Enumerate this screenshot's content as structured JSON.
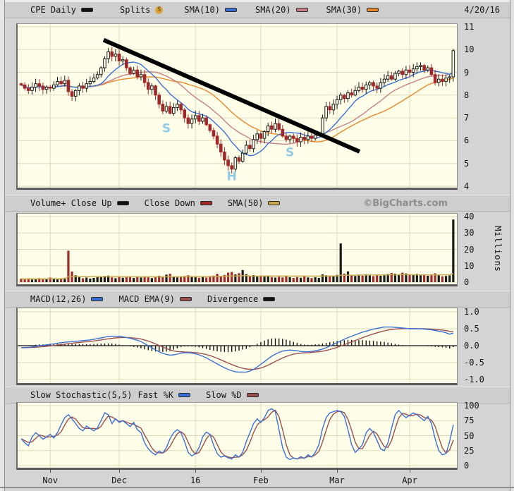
{
  "legend_price": {
    "symbol": "CPE Daily",
    "splits": "Splits",
    "splits_badge": "S",
    "sma10": "SMA(10)",
    "sma20": "SMA(20)",
    "sma30": "SMA(30)",
    "date": "4/20/16"
  },
  "legend_volume": {
    "volume": "Volume+ Close Up",
    "close_down": "Close Down",
    "sma50": "SMA(50)",
    "watermark": "©BigCharts.com"
  },
  "legend_macd": {
    "macd": "MACD(12,26)",
    "ema": "MACD EMA(9)",
    "divergence": "Divergence"
  },
  "legend_stoch": {
    "name": "Slow Stochastic(5,5)",
    "fast_k": "Fast %K",
    "slow_d": "Slow %D"
  },
  "colors": {
    "plot_bg": "#ffffe9",
    "grid": "#ddd9bd",
    "candle_up": "#1a1a1a",
    "candle_down": "#a02828",
    "sma10": "#3b6fd4",
    "sma20": "#c58088",
    "sma30": "#e8882a",
    "vol_sma50": "#c9a94f",
    "macd_line": "#3b6fd4",
    "macd_signal": "#9c4f4f",
    "stoch_k": "#3b6fd4",
    "stoch_d": "#9c4f4f",
    "histogram": "#111111",
    "trendline": "#000000",
    "annotation": "#8fcbe9"
  },
  "chart_data": {
    "symbol": "CPE",
    "period": "Daily",
    "as_of_date": "4/20/16",
    "x_axis": {
      "tick_labels": [
        "Nov",
        "Dec",
        "16",
        "Feb",
        "Mar",
        "Apr"
      ],
      "tick_day_index": [
        8,
        27,
        48,
        66,
        87,
        107
      ],
      "total_days": 120
    },
    "price_panel": {
      "type": "candlestick",
      "ylim": [
        4,
        11
      ],
      "yticks": [
        11,
        10,
        9,
        8,
        7,
        6,
        5,
        4
      ],
      "overlays": [
        "SMA(10)",
        "SMA(20)",
        "SMA(30)"
      ],
      "closes": [
        8.45,
        8.3,
        8.2,
        8.35,
        8.5,
        8.4,
        8.25,
        8.35,
        8.3,
        8.45,
        8.6,
        8.5,
        8.65,
        8.15,
        7.95,
        8.2,
        8.4,
        8.3,
        8.5,
        8.6,
        8.75,
        8.9,
        9.2,
        9.6,
        9.9,
        9.7,
        9.8,
        9.5,
        9.55,
        9.2,
        8.95,
        9.1,
        8.8,
        8.9,
        8.55,
        8.25,
        8.4,
        8.0,
        7.6,
        7.3,
        7.5,
        7.2,
        7.45,
        7.6,
        7.35,
        7.0,
        6.75,
        6.95,
        7.1,
        6.85,
        7.0,
        6.7,
        6.45,
        6.2,
        5.85,
        5.5,
        5.15,
        4.9,
        4.75,
        5.25,
        5.1,
        5.45,
        5.8,
        5.65,
        6.05,
        6.3,
        6.1,
        6.4,
        6.65,
        6.5,
        6.75,
        6.5,
        6.2,
        6.05,
        6.2,
        6.1,
        5.95,
        6.15,
        6.05,
        6.2,
        6.1,
        6.25,
        6.3,
        7.0,
        7.5,
        7.35,
        7.6,
        7.8,
        8.0,
        7.85,
        8.1,
        8.0,
        8.2,
        8.35,
        8.25,
        8.45,
        8.55,
        8.4,
        8.3,
        8.55,
        8.7,
        8.85,
        8.7,
        8.95,
        9.05,
        8.9,
        9.1,
        9.0,
        9.15,
        9.25,
        9.3,
        9.1,
        9.2,
        8.9,
        8.55,
        8.7,
        8.6,
        8.75,
        8.8,
        9.95
      ],
      "annotations": [
        {
          "label": "S",
          "day": 40,
          "price": 6.55
        },
        {
          "label": "H",
          "day": 58,
          "price": 4.45
        },
        {
          "label": "S",
          "day": 74,
          "price": 5.5
        }
      ],
      "trendline": {
        "from_day": 22.7,
        "from_price": 10.42,
        "to_day": 93.2,
        "to_price": 5.52
      }
    },
    "volume_panel": {
      "type": "bar",
      "unit": "Millions",
      "ylim": [
        0,
        40
      ],
      "yticks": [
        40,
        30,
        20,
        10,
        0
      ],
      "overlay": "SMA(50)",
      "values": [
        2.1,
        1.8,
        2.4,
        1.6,
        2.0,
        2.5,
        1.9,
        2.2,
        2.8,
        2.3,
        1.7,
        2.0,
        2.6,
        19.2,
        6.5,
        4.2,
        3.0,
        2.4,
        2.8,
        2.2,
        2.6,
        3.1,
        3.5,
        3.8,
        4.0,
        2.9,
        2.4,
        3.2,
        2.7,
        3.5,
        3.0,
        2.6,
        3.3,
        2.8,
        3.6,
        3.1,
        2.5,
        3.4,
        3.9,
        3.2,
        4.6,
        5.1,
        3.5,
        2.9,
        3.3,
        3.8,
        4.2,
        3.6,
        3.0,
        2.7,
        3.2,
        2.8,
        3.5,
        4.0,
        5.2,
        3.7,
        4.4,
        5.8,
        6.2,
        4.8,
        5.5,
        7.4,
        4.9,
        3.8,
        4.3,
        3.6,
        4.1,
        3.4,
        3.9,
        3.1,
        2.8,
        3.3,
        2.9,
        3.5,
        3.0,
        2.6,
        3.1,
        2.7,
        3.4,
        2.9,
        2.5,
        3.0,
        2.6,
        4.8,
        4.2,
        3.6,
        4.0,
        4.4,
        23.6,
        5.2,
        6.6,
        4.4,
        3.8,
        4.6,
        4.0,
        4.8,
        4.2,
        3.7,
        4.3,
        3.9,
        4.5,
        5.0,
        5.6,
        5.2,
        4.6,
        5.8,
        5.3,
        4.8,
        4.4,
        5.0,
        4.2,
        4.7,
        3.9,
        4.8,
        5.4,
        4.3,
        3.6,
        3.8,
        4.1,
        38.2
      ]
    },
    "macd_panel": {
      "type": "line+histogram",
      "ylim": [
        -1,
        1
      ],
      "ytick_values": [
        1,
        0.5,
        0,
        -0.5,
        -1
      ],
      "ytick_labels": [
        "1.0",
        "0.5",
        "0.0",
        "-0.5",
        "-1.0"
      ],
      "signal_rule": "EMA(9) of MACD",
      "histogram_rule": "MACD minus signal",
      "macd": [
        -0.06,
        -0.05,
        -0.05,
        -0.04,
        -0.02,
        0.0,
        0.01,
        0.02,
        0.04,
        0.05,
        0.07,
        0.09,
        0.1,
        0.11,
        0.12,
        0.13,
        0.14,
        0.15,
        0.16,
        0.17,
        0.19,
        0.21,
        0.23,
        0.25,
        0.27,
        0.28,
        0.28,
        0.27,
        0.26,
        0.24,
        0.22,
        0.19,
        0.16,
        0.12,
        0.06,
        0.0,
        -0.06,
        -0.12,
        -0.18,
        -0.23,
        -0.26,
        -0.28,
        -0.27,
        -0.25,
        -0.22,
        -0.21,
        -0.21,
        -0.22,
        -0.24,
        -0.27,
        -0.31,
        -0.36,
        -0.42,
        -0.48,
        -0.54,
        -0.6,
        -0.65,
        -0.7,
        -0.74,
        -0.77,
        -0.78,
        -0.78,
        -0.78,
        -0.75,
        -0.7,
        -0.63,
        -0.55,
        -0.47,
        -0.39,
        -0.31,
        -0.25,
        -0.2,
        -0.16,
        -0.14,
        -0.13,
        -0.14,
        -0.15,
        -0.17,
        -0.18,
        -0.18,
        -0.17,
        -0.15,
        -0.13,
        -0.1,
        -0.06,
        -0.01,
        0.04,
        0.09,
        0.14,
        0.19,
        0.24,
        0.28,
        0.32,
        0.36,
        0.4,
        0.43,
        0.46,
        0.49,
        0.51,
        0.53,
        0.55,
        0.55,
        0.55,
        0.54,
        0.53,
        0.52,
        0.51,
        0.5,
        0.5,
        0.5,
        0.5,
        0.49,
        0.48,
        0.47,
        0.45,
        0.43,
        0.41,
        0.38,
        0.34,
        0.37
      ]
    },
    "stochastic_panel": {
      "type": "line",
      "ylim": [
        0,
        100
      ],
      "yticks": [
        100,
        75,
        50,
        25,
        0
      ],
      "slow_d_rule": "SMA(3) of %K",
      "fast_k": [
        45,
        38,
        33,
        48,
        55,
        50,
        44,
        48,
        52,
        46,
        55,
        68,
        80,
        85,
        78,
        70,
        62,
        58,
        66,
        62,
        58,
        63,
        75,
        88,
        85,
        70,
        78,
        72,
        75,
        70,
        65,
        72,
        60,
        55,
        38,
        28,
        22,
        18,
        24,
        21,
        30,
        45,
        55,
        60,
        55,
        40,
        22,
        16,
        20,
        30,
        48,
        56,
        52,
        34,
        20,
        14,
        16,
        13,
        11,
        18,
        14,
        22,
        40,
        55,
        70,
        78,
        72,
        80,
        92,
        95,
        90,
        60,
        30,
        14,
        10,
        13,
        11,
        15,
        12,
        18,
        14,
        22,
        35,
        62,
        80,
        88,
        90,
        92,
        90,
        82,
        60,
        35,
        22,
        28,
        35,
        55,
        62,
        55,
        42,
        28,
        25,
        38,
        62,
        85,
        92,
        85,
        80,
        84,
        88,
        85,
        80,
        75,
        82,
        70,
        45,
        25,
        18,
        20,
        40,
        68
      ]
    }
  }
}
